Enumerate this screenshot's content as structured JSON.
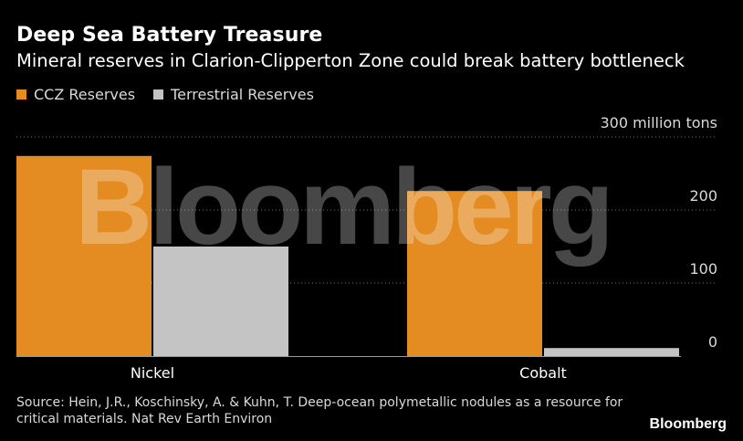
{
  "header": {
    "title": "Deep Sea Battery Treasure",
    "subtitle": "Mineral reserves in Clarion-Clipperton Zone could break battery bottleneck"
  },
  "footer": {
    "source": "Source: Hein, J.R., Koschinsky, A. & Kuhn, T. Deep-ocean polymetallic nodules as a resource for critical materials. Nat Rev Earth Environ",
    "brand": "Bloomberg",
    "watermark": "Bloomberg"
  },
  "colors": {
    "background": "#000000",
    "ccz": "#e48b22",
    "terrestrial": "#c4c4c4",
    "grid": "#6e6e6e"
  },
  "chart_data": {
    "type": "bar",
    "categories": [
      "Nickel",
      "Cobalt"
    ],
    "series": [
      {
        "name": "CCZ Reserves",
        "values": [
          274,
          226
        ],
        "color": "#e48b22"
      },
      {
        "name": "Terrestrial Reserves",
        "values": [
          150,
          11
        ],
        "color": "#c4c4c4"
      }
    ],
    "ylim": [
      0,
      300
    ],
    "yticks": [
      0,
      100,
      200,
      300
    ],
    "ytick_labels": [
      "0",
      "100",
      "200",
      "300 million tons"
    ],
    "y_axis_side": "right",
    "grid": true,
    "legend_placement": "top-left"
  }
}
